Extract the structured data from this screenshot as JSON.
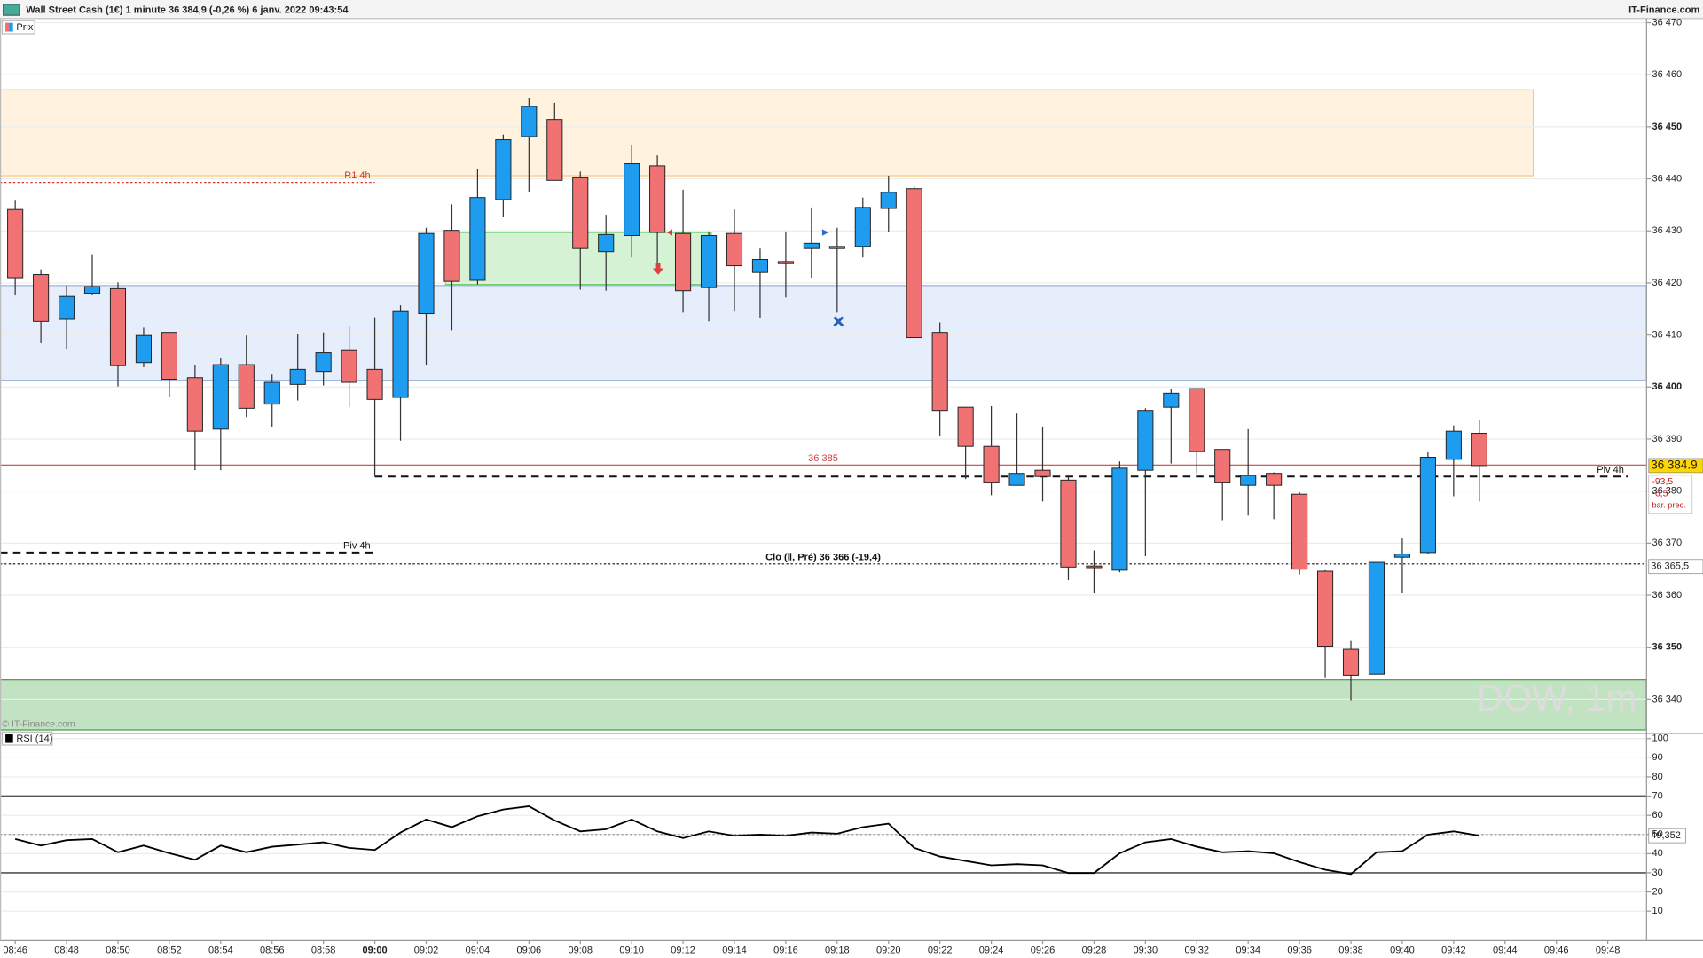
{
  "header": {
    "title": "Wall Street Cash (1€) 1 minute 36 384,9 (-0,26 %) 6 janv. 2022 09:43:54",
    "brand": "IT-Finance.com"
  },
  "chart_data": [
    {
      "type": "candlestick",
      "legend": "Prix",
      "watermark": "DOW, 1m",
      "copyright": "© IT-Finance.com",
      "categories": [
        "08:46",
        null,
        "08:48",
        null,
        "08:50",
        null,
        "08:52",
        null,
        "08:54",
        null,
        "08:56",
        null,
        "08:58",
        null,
        "09:00",
        null,
        "09:02",
        null,
        "09:04",
        null,
        "09:06",
        null,
        "09:08",
        null,
        "09:10",
        null,
        "09:12",
        null,
        "09:14",
        null,
        "09:16",
        null,
        "09:18",
        null,
        "09:20",
        null,
        "09:22",
        null,
        "09:24",
        null,
        "09:26",
        null,
        "09:28",
        null,
        "09:30",
        null,
        "09:32",
        null,
        "09:34",
        null,
        "09:36",
        null,
        "09:38",
        null,
        "09:40",
        null,
        "09:42",
        null
      ],
      "future_categories": [
        "09:44",
        "09:46",
        "09:48"
      ],
      "open": [
        36434.1,
        36421.6,
        36413.0,
        36418.0,
        36418.9,
        36404.7,
        36410.5,
        36401.8,
        36391.9,
        36404.3,
        36396.7,
        36400.5,
        36403.0,
        36407.0,
        36403.4,
        36398.0,
        36414.1,
        36430.1,
        36420.5,
        36436.0,
        36448.1,
        36451.4,
        36440.2,
        36426.0,
        36429.1,
        36442.5,
        36429.5,
        36419.1,
        36429.5,
        36422.0,
        36424.1,
        36426.6,
        36427.0,
        36427.0,
        36434.3,
        36438.1,
        36410.5,
        36396.1,
        36388.6,
        36381.1,
        36384.0,
        36382.1,
        36365.6,
        36364.8,
        36384.0,
        36396.1,
        36399.7,
        36388.0,
        36381.1,
        36383.4,
        36379.4,
        36364.6,
        36349.6,
        36344.8,
        36367.3,
        36368.2,
        36386.1,
        36391.1
      ],
      "high": [
        36435.8,
        36422.6,
        36419.5,
        36425.5,
        36420.1,
        36411.4,
        36410.5,
        36404.3,
        36405.5,
        36409.9,
        36402.4,
        36410.1,
        36410.5,
        36411.6,
        36413.4,
        36415.7,
        36430.6,
        36435.1,
        36441.8,
        36448.5,
        36455.6,
        36454.6,
        36441.4,
        36433.1,
        36446.4,
        36444.5,
        36437.9,
        36429.9,
        36434.1,
        36426.6,
        36429.9,
        36434.5,
        36430.6,
        36436.4,
        36440.6,
        36438.5,
        36412.4,
        36396.1,
        36396.3,
        36394.9,
        36392.4,
        36383.0,
        36368.6,
        36385.7,
        36395.9,
        36399.7,
        36399.7,
        36388.0,
        36391.9,
        36383.6,
        36379.8,
        36364.8,
        36351.2,
        36366.3,
        36370.9,
        36387.6,
        36392.6,
        36393.6
      ],
      "low": [
        36417.6,
        36408.4,
        36407.2,
        36417.6,
        36400.1,
        36403.8,
        36398.0,
        36384.0,
        36384.0,
        36394.2,
        36392.4,
        36397.4,
        36400.3,
        36396.1,
        36382.8,
        36389.7,
        36404.3,
        36410.9,
        36419.7,
        36432.6,
        36437.4,
        36439.7,
        36418.7,
        36418.5,
        36424.9,
        36423.5,
        36414.3,
        36412.6,
        36414.5,
        36413.2,
        36417.2,
        36421.0,
        36414.3,
        36424.9,
        36429.7,
        36409.5,
        36390.5,
        36382.3,
        36379.2,
        36381.1,
        36378.0,
        36362.9,
        36360.4,
        36364.4,
        36367.5,
        36385.3,
        36383.4,
        36374.4,
        36375.3,
        36374.6,
        36364.0,
        36344.2,
        36339.8,
        36344.8,
        36360.4,
        36367.9,
        36379.0,
        36378.0
      ],
      "close": [
        36421.0,
        36412.6,
        36417.4,
        36419.3,
        36404.1,
        36409.9,
        36401.5,
        36391.5,
        36404.3,
        36395.9,
        36400.9,
        36403.4,
        36406.6,
        36400.9,
        36397.6,
        36414.5,
        36429.5,
        36420.3,
        36436.4,
        36447.5,
        36453.9,
        36439.7,
        36426.6,
        36429.3,
        36442.9,
        36429.7,
        36418.5,
        36429.1,
        36423.3,
        36424.5,
        36423.7,
        36427.6,
        36426.6,
        36434.5,
        36437.4,
        36409.5,
        36395.5,
        36388.6,
        36381.7,
        36383.4,
        36382.8,
        36365.4,
        36365.4,
        36384.4,
        36395.5,
        36398.8,
        36387.6,
        36381.7,
        36383.0,
        36381.1,
        36365.0,
        36350.2,
        36344.6,
        36366.3,
        36367.9,
        36386.5,
        36391.5,
        36384.9
      ],
      "up_color": "#1e9cf0",
      "down_color": "#f07272",
      "ylim": [
        36333.5,
        36470.8
      ],
      "yticks": [
        {
          "value": 36340,
          "label": "36 340"
        },
        {
          "value": 36350,
          "label": "36 350"
        },
        {
          "value": 36360,
          "label": "36 360"
        },
        {
          "value": 36370,
          "label": "36 370"
        },
        {
          "value": 36380,
          "label": "36 380"
        },
        {
          "value": 36390,
          "label": "36 390"
        },
        {
          "value": 36400,
          "label": "36 400"
        },
        {
          "value": 36410,
          "label": "36 410"
        },
        {
          "value": 36420,
          "label": "36 420"
        },
        {
          "value": 36430,
          "label": "36 430"
        },
        {
          "value": 36440,
          "label": "36 440"
        },
        {
          "value": 36450,
          "label": "36 450"
        },
        {
          "value": 36460,
          "label": "36 460"
        },
        {
          "value": 36470,
          "label": "36 470"
        }
      ],
      "grid": true,
      "zones": [
        {
          "range": [
            36440.6,
            36457.1
          ],
          "fill": "#fff3e0",
          "stroke": "#f5c87a",
          "from": -0.6,
          "to": 59.1
        },
        {
          "range": [
            36401.3,
            36419.5
          ],
          "fill": "#e6edfb",
          "stroke": "#9ab4e0",
          "from": -0.6,
          "to": 63.5
        },
        {
          "range": [
            36419.7,
            36429.7
          ],
          "fill": "#d5f2d5",
          "stroke": "#66cc66",
          "from": 16.75,
          "to": 27.1
        },
        {
          "range": [
            36334.1,
            36343.7
          ],
          "fill": "#c2e3c2",
          "stroke": "#4a9a4a",
          "from": -0.6,
          "to": 63.5
        }
      ],
      "levels": [
        {
          "label": "R1 4h",
          "value": 36439.3,
          "color": "#d33333",
          "dash": "2,2",
          "width": 1,
          "from": -0.6,
          "to": 14,
          "label_at": "end"
        },
        {
          "label": "36 385",
          "value": 36385,
          "color": "#d04040",
          "dash": "none",
          "width": 1,
          "from": -0.6,
          "to": 63.5,
          "label_at": "center"
        },
        {
          "label": "Piv 4h",
          "value": 36382.8,
          "color": "#111111",
          "dash": "7,5",
          "width": 1.6,
          "from": 14,
          "to": 62.8,
          "label_at": "end"
        },
        {
          "label": "Piv 4h",
          "value": 36368.2,
          "color": "#111111",
          "dash": "7,5",
          "width": 1.6,
          "from": -0.6,
          "to": 14,
          "label_at": "end"
        },
        {
          "label": "Clo (Ⅱ, Pré) 36 366 (-19,4)",
          "value": 36366,
          "color": "#111111",
          "dash": "2,2",
          "width": 1,
          "from": -0.6,
          "to": 63.5,
          "label_at": "center"
        }
      ],
      "price_tags": [
        {
          "value": 36384.9,
          "label": "36 384.9",
          "bg": "#ffd700"
        },
        {
          "value": 36365.5,
          "label": "36 365,5",
          "bg": "#ffffff"
        }
      ],
      "info_box": [
        "-93,5",
        "-6,5",
        "bar. prec."
      ]
    },
    {
      "type": "line",
      "name": "RSI (14)",
      "color": "#000000",
      "values": [
        47.6,
        44.2,
        47.0,
        47.6,
        40.7,
        44.2,
        40.2,
        36.8,
        44.2,
        40.7,
        43.6,
        44.7,
        45.9,
        43.0,
        41.9,
        51.0,
        57.8,
        53.8,
        59.5,
        63.0,
        64.7,
        57.3,
        51.6,
        52.7,
        57.8,
        51.6,
        48.1,
        51.6,
        49.3,
        49.9,
        49.3,
        51.0,
        50.4,
        53.8,
        55.6,
        43.0,
        38.5,
        36.2,
        33.9,
        34.5,
        33.9,
        29.9,
        29.9,
        40.2,
        45.9,
        47.6,
        43.6,
        40.7,
        41.3,
        40.2,
        35.6,
        31.6,
        29.3,
        40.7,
        41.3,
        49.9,
        51.6,
        49.352
      ],
      "value_labels": [
        null,
        null,
        null,
        null,
        null,
        null,
        null,
        null,
        null,
        null,
        null,
        null,
        null,
        null,
        null,
        null,
        null,
        null,
        null,
        null,
        null,
        null,
        null,
        null,
        null,
        null,
        null,
        null,
        null,
        null,
        null,
        null,
        null,
        null,
        null,
        null,
        null,
        null,
        null,
        null,
        null,
        null,
        null,
        null,
        null,
        null,
        null,
        null,
        null,
        null,
        null,
        null,
        null,
        null,
        null,
        null,
        null,
        "49,352"
      ],
      "ylim": [
        -5.4,
        102.3
      ],
      "yticks": [
        10,
        20,
        30,
        40,
        50,
        60,
        70,
        80,
        90,
        100
      ],
      "grid": true,
      "levels": [
        {
          "value": 70,
          "dash": "none"
        },
        {
          "value": 50,
          "dash": "2,2"
        },
        {
          "value": 30,
          "dash": "none"
        }
      ]
    }
  ]
}
